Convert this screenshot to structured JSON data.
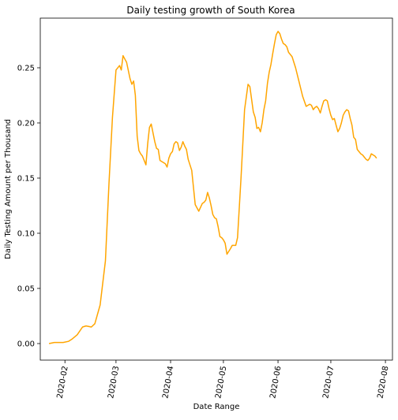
{
  "chart_data": {
    "type": "line",
    "title": "Daily testing growth of South Korea",
    "xlabel": "Date Range",
    "ylabel": "Daily Testing Amount per Thousand",
    "xlim": [
      "2020-01-18",
      "2020-08-05"
    ],
    "ylim": [
      -0.015,
      0.295
    ],
    "x_ticks": [
      "2020-02",
      "2020-03",
      "2020-04",
      "2020-05",
      "2020-06",
      "2020-07",
      "2020-08"
    ],
    "y_ticks": [
      0.0,
      0.05,
      0.1,
      0.15,
      0.2,
      0.25
    ],
    "y_tick_labels": [
      "0.00",
      "0.05",
      "0.10",
      "0.15",
      "0.20",
      "0.25"
    ],
    "line_color": "#FFA500",
    "grid": false,
    "series": [
      {
        "x": [
          "2020-01-23",
          "2020-01-26",
          "2020-01-31",
          "2020-02-03",
          "2020-02-05",
          "2020-02-08",
          "2020-02-11",
          "2020-02-13",
          "2020-02-16",
          "2020-02-18",
          "2020-02-21",
          "2020-02-24",
          "2020-02-26",
          "2020-02-28",
          "2020-03-01",
          "2020-03-03",
          "2020-03-04",
          "2020-03-05",
          "2020-03-06",
          "2020-03-07",
          "2020-03-09",
          "2020-03-10",
          "2020-03-11",
          "2020-03-12",
          "2020-03-13",
          "2020-03-14",
          "2020-03-15",
          "2020-03-16",
          "2020-03-18",
          "2020-03-19",
          "2020-03-20",
          "2020-03-21",
          "2020-03-23",
          "2020-03-24",
          "2020-03-25",
          "2020-03-26",
          "2020-03-28",
          "2020-03-29",
          "2020-03-30",
          "2020-03-31",
          "2020-04-01",
          "2020-04-02",
          "2020-04-03",
          "2020-04-04",
          "2020-04-05",
          "2020-04-06",
          "2020-04-07",
          "2020-04-08",
          "2020-04-09",
          "2020-04-10",
          "2020-04-11",
          "2020-04-13",
          "2020-04-15",
          "2020-04-17",
          "2020-04-19",
          "2020-04-20",
          "2020-04-21",
          "2020-04-22",
          "2020-04-23",
          "2020-04-24",
          "2020-04-25",
          "2020-04-26",
          "2020-04-27",
          "2020-04-28",
          "2020-04-29",
          "2020-04-30",
          "2020-05-01",
          "2020-05-02",
          "2020-05-03",
          "2020-05-05",
          "2020-05-06",
          "2020-05-07",
          "2020-05-08",
          "2020-05-09",
          "2020-05-11",
          "2020-05-12",
          "2020-05-13",
          "2020-05-15",
          "2020-05-16",
          "2020-05-18",
          "2020-05-19",
          "2020-05-20",
          "2020-05-21",
          "2020-05-22",
          "2020-05-23",
          "2020-05-24",
          "2020-05-25",
          "2020-05-26",
          "2020-05-27",
          "2020-05-28",
          "2020-05-29",
          "2020-05-30",
          "2020-05-31",
          "2020-06-01",
          "2020-06-02",
          "2020-06-03",
          "2020-06-04",
          "2020-06-05",
          "2020-06-06",
          "2020-06-07",
          "2020-06-09",
          "2020-06-11",
          "2020-06-13",
          "2020-06-15",
          "2020-06-17",
          "2020-06-19",
          "2020-06-20",
          "2020-06-21",
          "2020-06-22",
          "2020-06-23",
          "2020-06-24",
          "2020-06-25",
          "2020-06-26",
          "2020-06-27",
          "2020-06-28",
          "2020-06-29",
          "2020-06-30",
          "2020-07-01",
          "2020-07-02",
          "2020-07-03",
          "2020-07-04",
          "2020-07-05",
          "2020-07-06",
          "2020-07-07",
          "2020-07-08",
          "2020-07-09",
          "2020-07-10",
          "2020-07-11",
          "2020-07-12",
          "2020-07-13",
          "2020-07-14",
          "2020-07-15",
          "2020-07-16",
          "2020-07-17",
          "2020-07-18",
          "2020-07-19",
          "2020-07-20",
          "2020-07-21",
          "2020-07-22",
          "2020-07-23",
          "2020-07-24",
          "2020-07-25",
          "2020-07-26",
          "2020-07-27"
        ],
        "y": [
          0.0,
          0.001,
          0.001,
          0.002,
          0.004,
          0.008,
          0.015,
          0.016,
          0.015,
          0.018,
          0.035,
          0.075,
          0.145,
          0.205,
          0.248,
          0.252,
          0.248,
          0.261,
          0.258,
          0.255,
          0.24,
          0.235,
          0.238,
          0.225,
          0.188,
          0.175,
          0.172,
          0.17,
          0.162,
          0.181,
          0.196,
          0.199,
          0.183,
          0.177,
          0.176,
          0.166,
          0.164,
          0.163,
          0.16,
          0.168,
          0.172,
          0.174,
          0.181,
          0.183,
          0.182,
          0.175,
          0.178,
          0.183,
          0.179,
          0.176,
          0.167,
          0.157,
          0.126,
          0.12,
          0.127,
          0.128,
          0.13,
          0.137,
          0.132,
          0.125,
          0.117,
          0.114,
          0.113,
          0.106,
          0.097,
          0.096,
          0.094,
          0.091,
          0.081,
          0.086,
          0.089,
          0.089,
          0.089,
          0.096,
          0.15,
          0.18,
          0.212,
          0.235,
          0.233,
          0.21,
          0.205,
          0.195,
          0.196,
          0.192,
          0.2,
          0.212,
          0.22,
          0.236,
          0.246,
          0.253,
          0.263,
          0.272,
          0.28,
          0.283,
          0.281,
          0.276,
          0.272,
          0.271,
          0.269,
          0.264,
          0.26,
          0.25,
          0.237,
          0.224,
          0.215,
          0.217,
          0.216,
          0.212,
          0.214,
          0.215,
          0.213,
          0.209,
          0.215,
          0.22,
          0.221,
          0.22,
          0.213,
          0.207,
          0.203,
          0.204,
          0.198,
          0.192,
          0.195,
          0.2,
          0.207,
          0.21,
          0.212,
          0.211,
          0.204,
          0.198,
          0.187,
          0.185,
          0.176,
          0.174,
          0.172,
          0.171,
          0.169,
          0.167,
          0.166,
          0.168,
          0.172,
          0.171,
          0.17,
          0.168
        ]
      }
    ]
  }
}
